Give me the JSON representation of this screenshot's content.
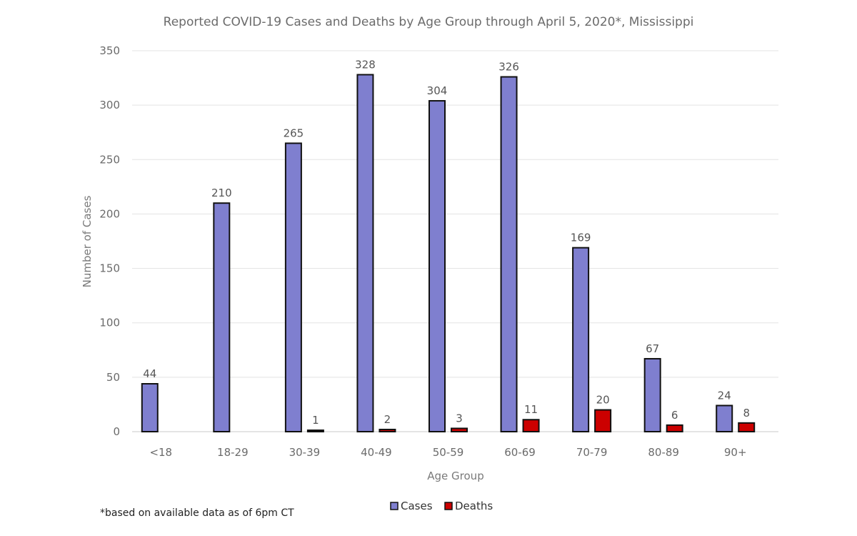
{
  "chart_data": {
    "type": "bar",
    "title": "Reported COVID-19 Cases and Deaths by Age Group through April 5, 2020*, Mississippi",
    "xlabel": "Age Group",
    "ylabel": "Number of Cases",
    "ylim": [
      0,
      350
    ],
    "yticks": [
      0,
      50,
      100,
      150,
      200,
      250,
      300,
      350
    ],
    "grid": true,
    "legend_position": "bottom",
    "categories": [
      "<18",
      "18-29",
      "30-39",
      "40-49",
      "50-59",
      "60-69",
      "70-79",
      "80-89",
      "90+"
    ],
    "series": [
      {
        "name": "Cases",
        "color": "#7f7fcf",
        "values": [
          44,
          210,
          265,
          328,
          304,
          326,
          169,
          67,
          24
        ],
        "labels": [
          "44",
          "210",
          "265",
          "328",
          "304",
          "326",
          "169",
          "67",
          "24"
        ]
      },
      {
        "name": "Deaths",
        "color": "#cc0000",
        "values": [
          0,
          0,
          1,
          2,
          3,
          11,
          20,
          6,
          8
        ],
        "labels": [
          "",
          "",
          "1",
          "2",
          "3",
          "11",
          "20",
          "6",
          "8"
        ]
      }
    ],
    "footnote": "*based on available data as of 6pm CT"
  }
}
